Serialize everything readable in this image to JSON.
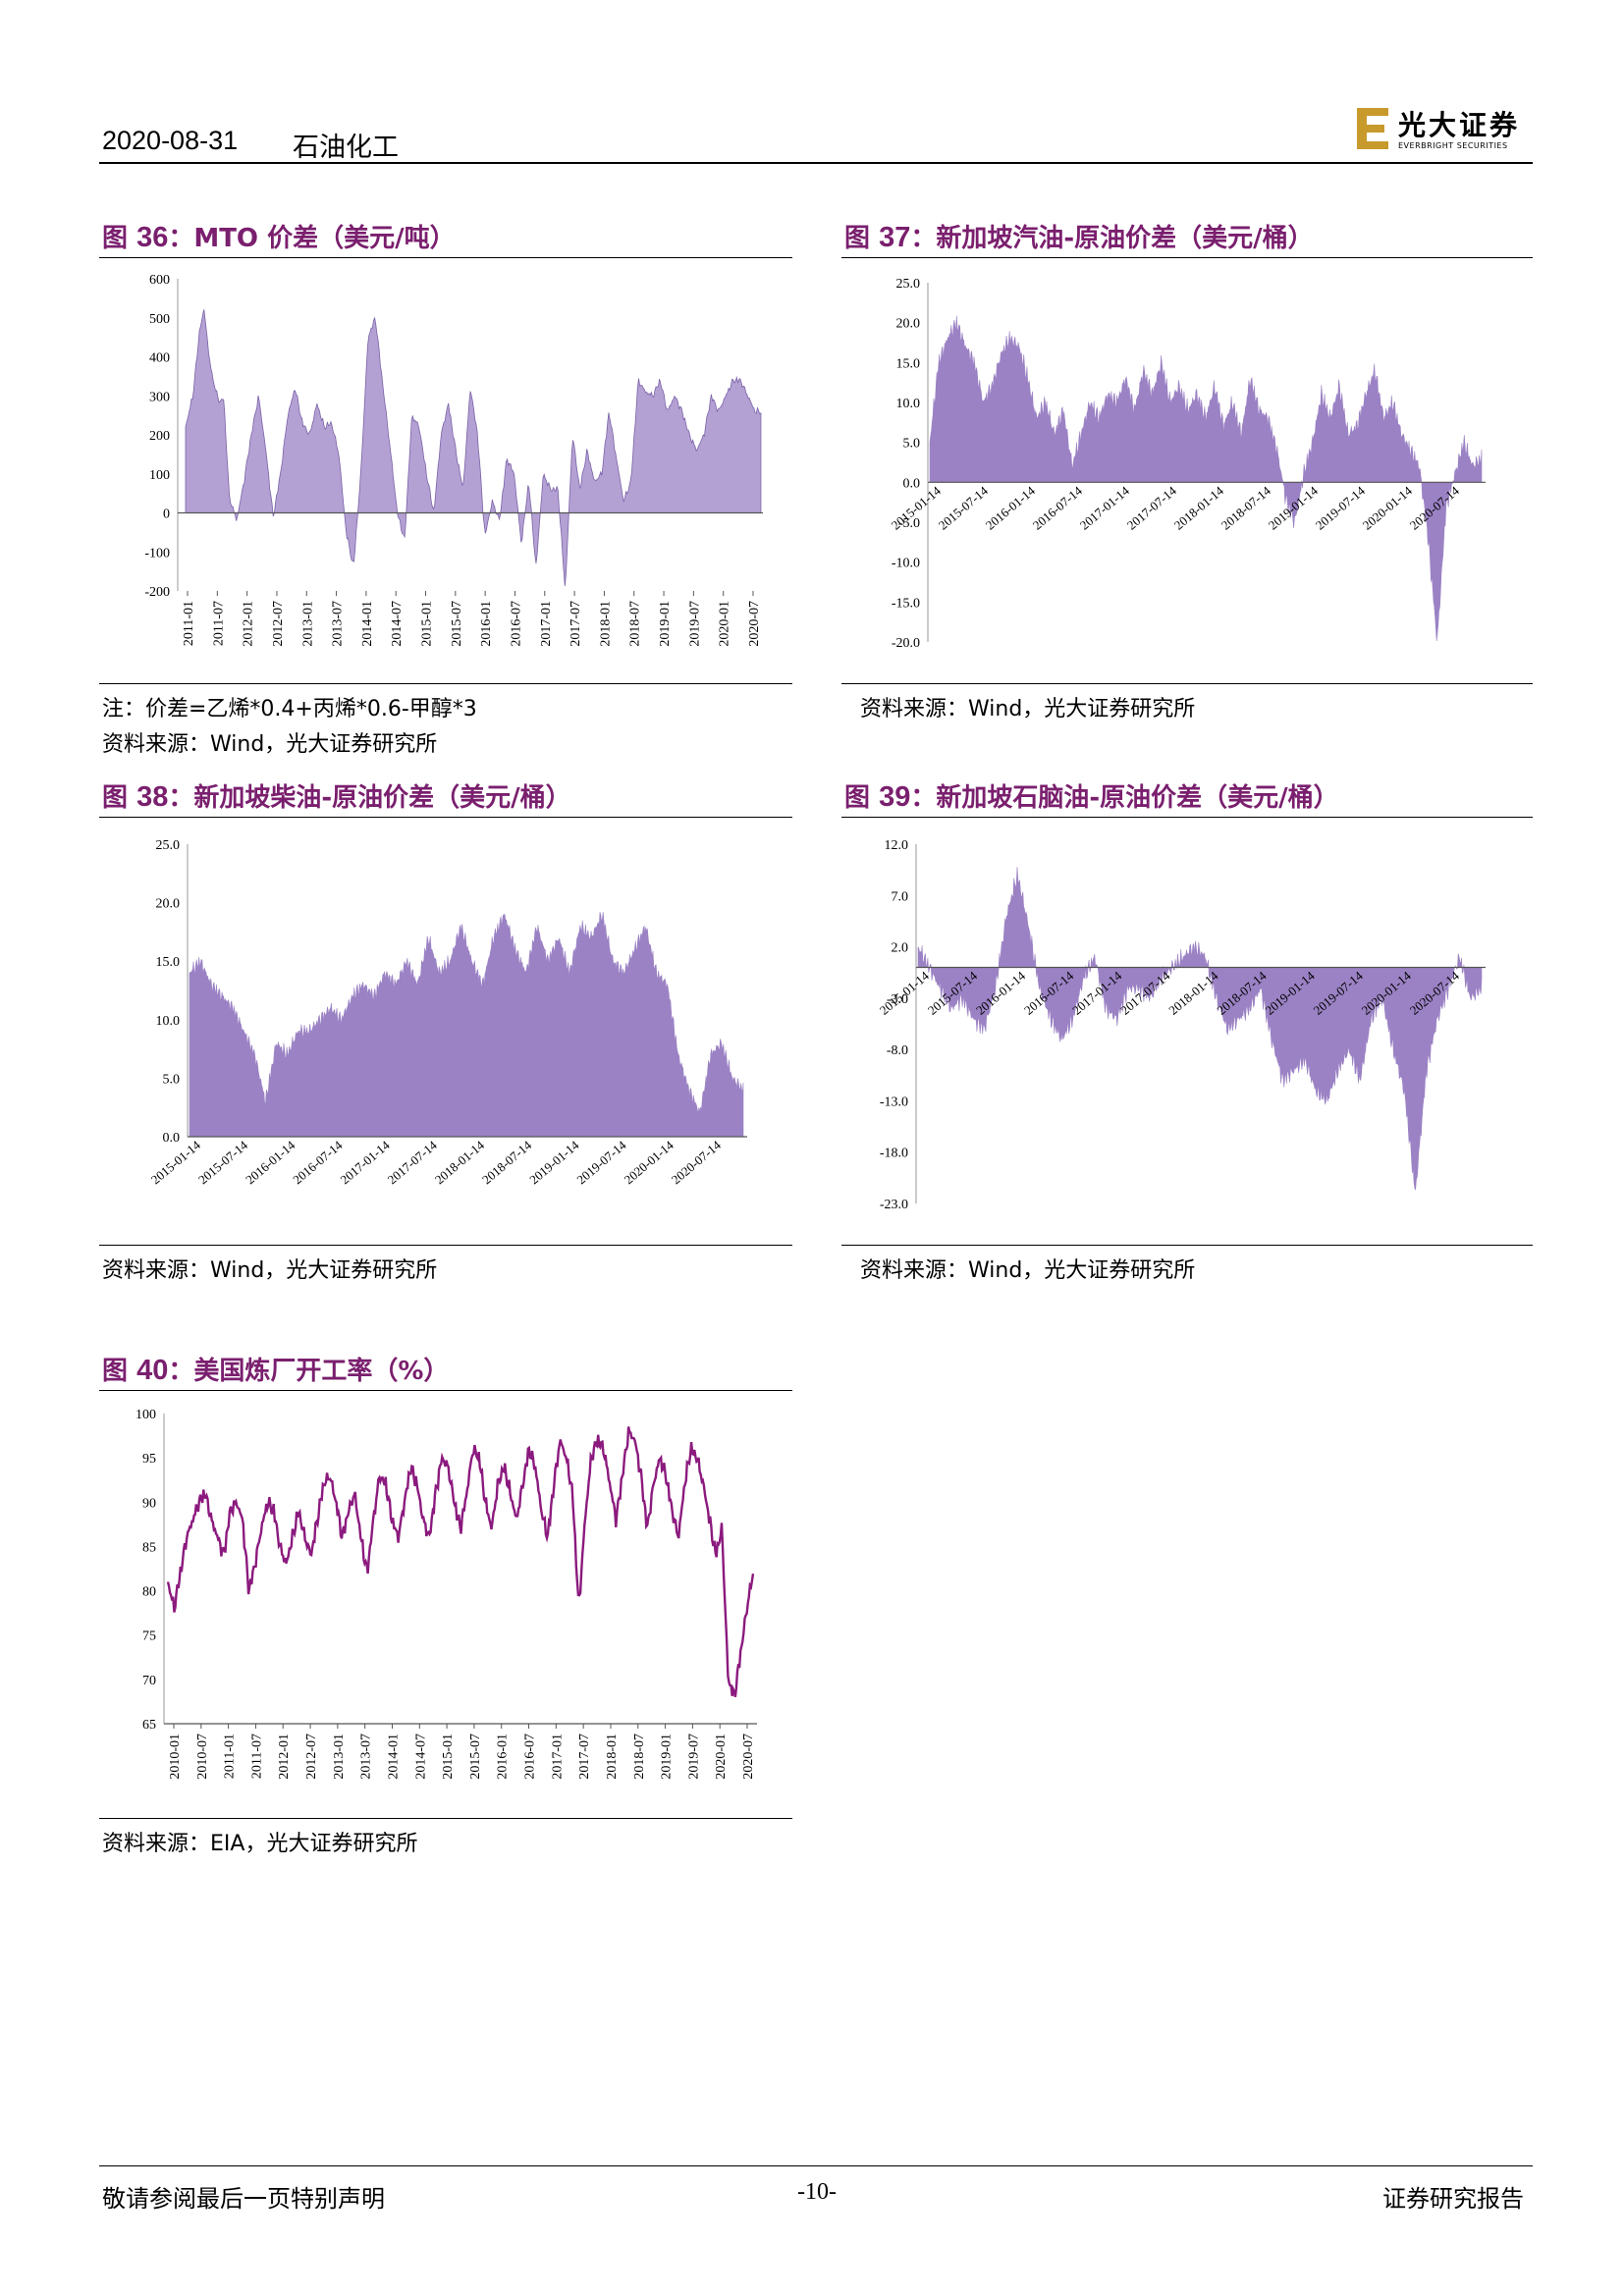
{
  "header": {
    "date": "2020-08-31",
    "sector": "石油化工",
    "logo_cn": "光大证券",
    "logo_en": "EVERBRIGHT SECURITIES"
  },
  "colors": {
    "fill": "#9B82C4",
    "line": "#8B1A7E",
    "title": "#7A1F6E",
    "logo_gold": "#C89A2C"
  },
  "figures": {
    "fig36": {
      "prefix": "图 ",
      "num": "36",
      "title": "：MTO 价差（美元/吨）",
      "note": "注：价差=乙烯*0.4+丙烯*0.6-甲醇*3",
      "source": "资料来源：Wind，光大证券研究所"
    },
    "fig37": {
      "prefix": "图 ",
      "num": "37",
      "title": "：新加坡汽油-原油价差（美元/桶）",
      "source": "资料来源：Wind，光大证券研究所"
    },
    "fig38": {
      "prefix": "图 ",
      "num": "38",
      "title": "：新加坡柴油-原油价差（美元/桶）",
      "source": "资料来源：Wind，光大证券研究所"
    },
    "fig39": {
      "prefix": "图 ",
      "num": "39",
      "title": "：新加坡石脑油-原油价差（美元/桶）",
      "source": "资料来源：Wind，光大证券研究所"
    },
    "fig40": {
      "prefix": "图 ",
      "num": "40",
      "title": "：美国炼厂开工率（%）",
      "source": "资料来源：EIA，光大证券研究所"
    }
  },
  "chart_data": [
    {
      "id": "fig36",
      "type": "area",
      "ylim": [
        -200,
        600
      ],
      "yticks": [
        "600",
        "500",
        "400",
        "300",
        "200",
        "100",
        "0",
        "-100",
        "-200"
      ],
      "xticks": [
        "2011-01",
        "2011-07",
        "2012-01",
        "2012-07",
        "2013-01",
        "2013-07",
        "2014-01",
        "2014-07",
        "2015-01",
        "2015-07",
        "2016-01",
        "2016-07",
        "2017-01",
        "2017-07",
        "2018-01",
        "2018-07",
        "2019-01",
        "2019-07",
        "2020-01",
        "2020-07"
      ],
      "x": [
        0,
        0.5,
        1,
        1.3,
        1.6,
        2,
        2.4,
        2.6,
        3,
        3.5,
        4,
        4.5,
        5,
        5.5,
        6,
        6.5,
        7,
        7.5,
        8,
        8.5,
        9,
        9.5,
        10,
        10.5,
        11,
        11.5,
        12,
        12.5,
        13,
        13.5,
        14,
        14.5,
        15,
        15.5,
        16,
        16.5,
        17,
        17.5,
        18,
        18.5,
        19,
        19.5,
        20,
        20.5,
        21,
        21.5,
        22,
        22.5,
        23,
        23.5,
        24,
        24.5,
        25,
        25.5,
        26,
        26.5,
        27,
        27.5,
        28,
        28.5,
        29,
        29.5,
        30,
        30.5,
        31,
        31.5,
        32,
        32.5,
        33,
        33.5,
        34,
        34.5,
        35,
        35.5,
        36,
        36.5,
        37,
        37.5,
        38,
        38.5,
        39,
        39.4
      ],
      "values": [
        220,
        300,
        480,
        520,
        400,
        320,
        280,
        300,
        40,
        -20,
        80,
        200,
        300,
        160,
        -10,
        100,
        250,
        320,
        230,
        200,
        280,
        220,
        230,
        150,
        -50,
        -140,
        100,
        450,
        500,
        330,
        170,
        0,
        -70,
        250,
        220,
        100,
        0,
        200,
        280,
        160,
        60,
        320,
        200,
        -60,
        30,
        -20,
        140,
        100,
        -80,
        80,
        -140,
        100,
        60,
        60,
        -200,
        200,
        60,
        160,
        80,
        100,
        260,
        140,
        30,
        80,
        340,
        310,
        300,
        340,
        260,
        300,
        260,
        200,
        160,
        200,
        300,
        260,
        300,
        340,
        340,
        300,
        260,
        260
      ],
      "comment_x_units": "quarters since 2011-01"
    },
    {
      "id": "fig37",
      "type": "area",
      "ylim": [
        -20,
        25
      ],
      "yticks": [
        "25.0",
        "20.0",
        "15.0",
        "10.0",
        "5.0",
        "0.0",
        "-5.0",
        "-10.0",
        "-15.0",
        "-20.0"
      ],
      "xticks": [
        "2015-01-14",
        "2015-07-14",
        "2016-01-14",
        "2016-07-14",
        "2017-01-14",
        "2017-07-14",
        "2018-01-14",
        "2018-07-14",
        "2019-01-14",
        "2019-07-14",
        "2020-01-14",
        "2020-07-14"
      ],
      "values": [
        5,
        15,
        18,
        20,
        17,
        15,
        10,
        12,
        16,
        18,
        17,
        13,
        8,
        10,
        6,
        9,
        2,
        6,
        10,
        8,
        11,
        10,
        13,
        9,
        14,
        11,
        15,
        10,
        12,
        9,
        11,
        8,
        12,
        7,
        10,
        6,
        13,
        9,
        8,
        4,
        -2,
        -5,
        1,
        5,
        11,
        8,
        12,
        6,
        7,
        11,
        14,
        8,
        10,
        6,
        4,
        2,
        -7,
        -20,
        -3,
        1,
        5,
        2,
        3
      ]
    },
    {
      "id": "fig38",
      "type": "area",
      "ylim": [
        0,
        25
      ],
      "yticks": [
        "25.0",
        "20.0",
        "15.0",
        "10.0",
        "5.0",
        "0.0"
      ],
      "xticks": [
        "2015-01-14",
        "2015-07-14",
        "2016-01-14",
        "2016-07-14",
        "2017-01-14",
        "2017-07-14",
        "2018-01-14",
        "2018-07-14",
        "2019-01-14",
        "2019-07-14",
        "2020-01-14",
        "2020-07-14"
      ],
      "values": [
        14,
        15,
        13,
        12,
        11,
        9,
        7,
        3,
        8,
        7,
        9,
        9,
        10,
        11,
        10,
        12,
        13,
        12,
        14,
        13,
        15,
        13,
        17,
        14,
        15,
        18,
        15,
        13,
        17,
        19,
        16,
        14,
        18,
        15,
        17,
        14,
        18,
        17,
        19,
        15,
        14,
        16,
        18,
        14,
        13,
        7,
        4,
        2,
        7,
        8,
        5,
        4
      ]
    },
    {
      "id": "fig39",
      "type": "area",
      "ylim": [
        -23,
        12
      ],
      "yticks": [
        "12.0",
        "7.0",
        "2.0",
        "-3.0",
        "-8.0",
        "-13.0",
        "-18.0",
        "-23.0"
      ],
      "xticks": [
        "2015-01-14",
        "2015-07-14",
        "2016-01-14",
        "2016-07-14",
        "2017-01-14",
        "2017-07-14",
        "2018-01-14",
        "2018-07-14",
        "2019-01-14",
        "2019-07-14",
        "2020-01-14",
        "2020-07-14"
      ],
      "values": [
        2,
        0,
        -2,
        -4,
        -3,
        -5,
        -6,
        -2,
        5,
        9,
        4,
        -2,
        -5,
        -7,
        -5,
        -1,
        1,
        -4,
        -5,
        -2,
        -2,
        -3,
        -1,
        0,
        1,
        2,
        1,
        -3,
        -6,
        -5,
        -4,
        -2,
        -7,
        -11,
        -10,
        -9,
        -12,
        -13,
        -10,
        -8,
        -11,
        -5,
        -3,
        -8,
        -12,
        -22,
        -10,
        -5,
        -2,
        1,
        -3,
        -2
      ]
    },
    {
      "id": "fig40",
      "type": "line",
      "ylim": [
        65,
        100
      ],
      "yticks": [
        "100",
        "95",
        "90",
        "85",
        "80",
        "75",
        "70",
        "65"
      ],
      "xticks": [
        "2010-01",
        "2010-07",
        "2011-01",
        "2011-07",
        "2012-01",
        "2012-07",
        "2013-01",
        "2013-07",
        "2014-01",
        "2014-07",
        "2015-01",
        "2015-07",
        "2016-01",
        "2016-07",
        "2017-01",
        "2017-07",
        "2018-01",
        "2018-07",
        "2019-01",
        "2019-07",
        "2020-01",
        "2020-07"
      ],
      "values": [
        81,
        78,
        82,
        86,
        88,
        90,
        91,
        88,
        86,
        84,
        89,
        90,
        88,
        80,
        83,
        87,
        90,
        89,
        85,
        83,
        86,
        89,
        86,
        84,
        88,
        92,
        93,
        90,
        86,
        89,
        91,
        86,
        82,
        88,
        93,
        92,
        88,
        86,
        90,
        94,
        92,
        88,
        86,
        91,
        95,
        94,
        90,
        87,
        91,
        96,
        95,
        90,
        87,
        92,
        94,
        91,
        88,
        92,
        96,
        94,
        89,
        86,
        92,
        97,
        95,
        91,
        78,
        88,
        95,
        97,
        96,
        92,
        88,
        93,
        98,
        97,
        93,
        87,
        92,
        95,
        93,
        89,
        86,
        92,
        96,
        95,
        92,
        88,
        84,
        87,
        70,
        68,
        73,
        78,
        82
      ]
    }
  ],
  "footer": {
    "disclaimer": "敬请参阅最后一页特别声明",
    "page": "-10-",
    "report_type": "证券研究报告"
  }
}
